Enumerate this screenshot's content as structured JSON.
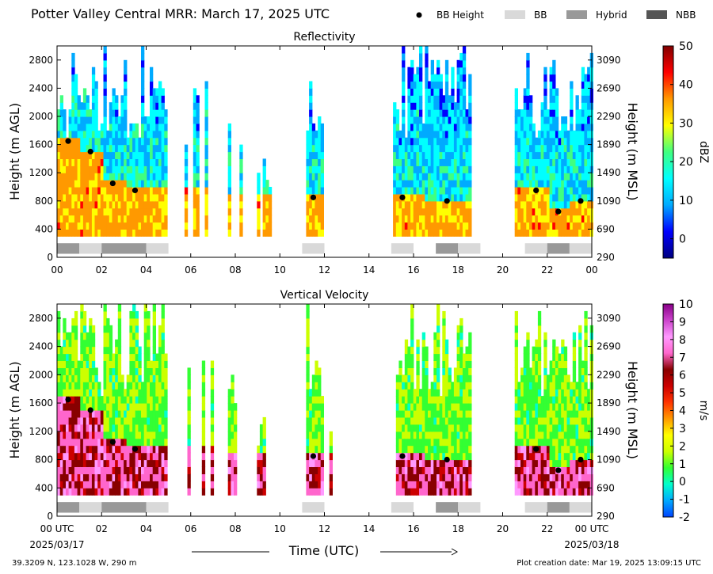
{
  "header": {
    "title": "Potter Valley Central MRR:  March 17, 2025 UTC",
    "legend": [
      {
        "label": "BB Height",
        "kind": "dot",
        "color": "#000000"
      },
      {
        "label": "BB",
        "kind": "box",
        "color": "#d9d9d9"
      },
      {
        "label": "Hybrid",
        "kind": "box",
        "color": "#999999"
      },
      {
        "label": "NBB",
        "kind": "box",
        "color": "#555555"
      }
    ]
  },
  "footer": {
    "location": "39.3209 N, 123.1028 W, 290 m",
    "creation": "Plot creation date: Mar 19, 2025 13:09:15 UTC",
    "xlabel": "Time (UTC)",
    "start_date": "2025/03/17",
    "end_date": "2025/03/18"
  },
  "chart_data": [
    {
      "type": "heatmap",
      "title": "Reflectivity",
      "ylabel": "Height (m AGL)",
      "y2label": "Height (m MSL)",
      "xlim": [
        0,
        24
      ],
      "ylim": [
        0,
        3000
      ],
      "x_ticks": [
        "00",
        "02",
        "04",
        "06",
        "08",
        "10",
        "12",
        "14",
        "16",
        "18",
        "20",
        "22",
        "00"
      ],
      "y_ticks": [
        0,
        400,
        800,
        1200,
        1600,
        2000,
        2400,
        2800
      ],
      "y2_ticks": [
        290,
        690,
        1090,
        1490,
        1890,
        2290,
        2690,
        3090
      ],
      "colorbar": {
        "label": "dBZ",
        "range": [
          -5,
          50
        ],
        "ticks": [
          0,
          10,
          20,
          30,
          40,
          50
        ],
        "stops": [
          "#000080",
          "#0000ff",
          "#00aaff",
          "#00ffff",
          "#40ff80",
          "#ffff00",
          "#ff9900",
          "#ff0000",
          "#800000"
        ]
      },
      "bb_height": {
        "x": [
          0.5,
          1.5,
          2.5,
          3.5,
          11.5,
          15.5,
          17.5,
          21.5,
          22.5,
          23.5
        ],
        "y": [
          1650,
          1500,
          1050,
          950,
          850,
          850,
          800,
          950,
          650,
          800
        ]
      },
      "bb_type": [
        {
          "start": 0,
          "end": 1,
          "type": "Hybrid"
        },
        {
          "start": 1,
          "end": 2,
          "type": "BB"
        },
        {
          "start": 2,
          "end": 4,
          "type": "Hybrid"
        },
        {
          "start": 4,
          "end": 5,
          "type": "BB"
        },
        {
          "start": 11,
          "end": 12,
          "type": "BB"
        },
        {
          "start": 15,
          "end": 16,
          "type": "BB"
        },
        {
          "start": 17,
          "end": 18,
          "type": "Hybrid"
        },
        {
          "start": 18,
          "end": 19,
          "type": "BB"
        },
        {
          "start": 21,
          "end": 22,
          "type": "BB"
        },
        {
          "start": 22,
          "end": 23,
          "type": "Hybrid"
        },
        {
          "start": 23,
          "end": 24,
          "type": "BB"
        }
      ]
    },
    {
      "type": "heatmap",
      "title": "Vertical Velocity",
      "ylabel": "Height (m AGL)",
      "y2label": "Height (m MSL)",
      "xlim": [
        0,
        24
      ],
      "ylim": [
        0,
        3000
      ],
      "x_ticks": [
        "00 UTC",
        "02",
        "04",
        "06",
        "08",
        "10",
        "12",
        "14",
        "16",
        "18",
        "20",
        "22",
        "00 UTC"
      ],
      "y_ticks": [
        0,
        400,
        800,
        1200,
        1600,
        2000,
        2400,
        2800
      ],
      "y2_ticks": [
        290,
        690,
        1090,
        1490,
        1890,
        2290,
        2690,
        3090
      ],
      "colorbar": {
        "label": "m/s",
        "range": [
          -2,
          10
        ],
        "ticks": [
          -2,
          -1,
          0,
          1,
          2,
          3,
          4,
          5,
          6,
          7,
          8,
          9,
          10
        ],
        "stops": [
          "#0044ff",
          "#00aaff",
          "#00ffcc",
          "#33ff33",
          "#ccff00",
          "#ffff00",
          "#ff9900",
          "#ff3300",
          "#cc0000",
          "#880000",
          "#ff66cc",
          "#ff99ff",
          "#cc44cc",
          "#880088"
        ]
      },
      "bb_height": {
        "x": [
          0.5,
          1.5,
          2.5,
          3.5,
          11.5,
          15.5,
          17.5,
          21.5,
          22.5,
          23.5
        ],
        "y": [
          1650,
          1500,
          1050,
          950,
          850,
          850,
          800,
          950,
          650,
          800
        ]
      },
      "bb_type": [
        {
          "start": 0,
          "end": 1,
          "type": "Hybrid"
        },
        {
          "start": 1,
          "end": 2,
          "type": "BB"
        },
        {
          "start": 2,
          "end": 4,
          "type": "Hybrid"
        },
        {
          "start": 4,
          "end": 5,
          "type": "BB"
        },
        {
          "start": 11,
          "end": 12,
          "type": "BB"
        },
        {
          "start": 15,
          "end": 16,
          "type": "BB"
        },
        {
          "start": 17,
          "end": 18,
          "type": "Hybrid"
        },
        {
          "start": 18,
          "end": 19,
          "type": "BB"
        },
        {
          "start": 21,
          "end": 22,
          "type": "BB"
        },
        {
          "start": 22,
          "end": 23,
          "type": "Hybrid"
        },
        {
          "start": 23,
          "end": 24,
          "type": "BB"
        }
      ]
    }
  ]
}
